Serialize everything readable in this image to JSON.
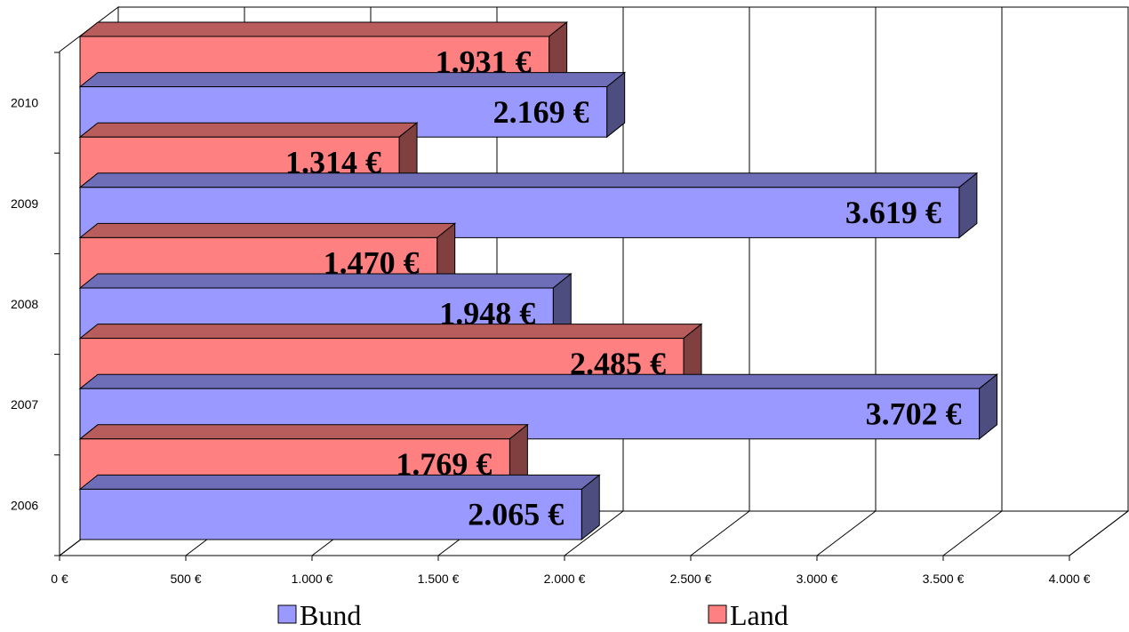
{
  "chart_data": {
    "type": "bar",
    "orientation": "horizontal",
    "style": "3d",
    "categories": [
      "2006",
      "2007",
      "2008",
      "2009",
      "2010"
    ],
    "series": [
      {
        "name": "Bund",
        "values": [
          2065,
          3702,
          1948,
          3619,
          2169
        ],
        "labels": [
          "2.065 €",
          "3.702 €",
          "1.948 €",
          "3.619 €",
          "2.169 €"
        ],
        "color": "#9999FF"
      },
      {
        "name": "Land",
        "values": [
          1769,
          2485,
          1470,
          1314,
          1931
        ],
        "labels": [
          "1.769 €",
          "2.485 €",
          "1.470 €",
          "1.314 €",
          "1.931 €"
        ],
        "color": "#FF8080"
      }
    ],
    "x_ticks": [
      "0 €",
      "500 €",
      "1.000 €",
      "1.500 €",
      "2.000 €",
      "2.500 €",
      "3.000 €",
      "3.500 €",
      "4.000 €"
    ],
    "xlim": [
      0,
      4000
    ],
    "grid": true,
    "legend": "bottom"
  }
}
